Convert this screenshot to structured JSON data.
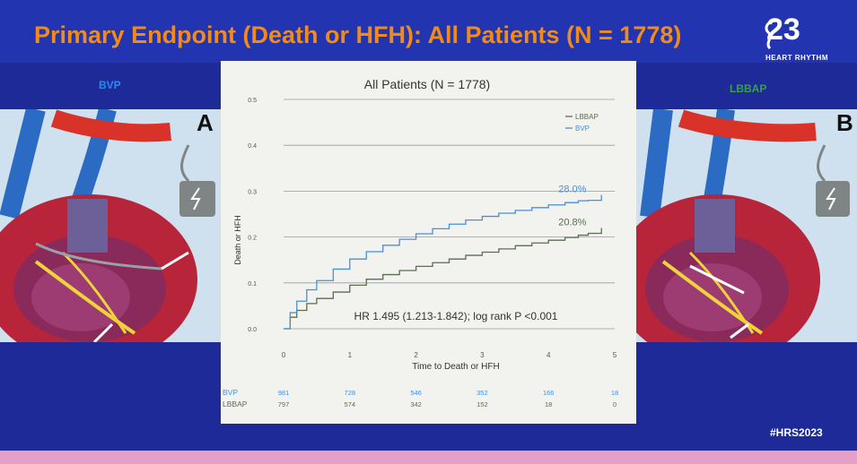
{
  "slide": {
    "title": "Primary Endpoint (Death or HFH): All Patients (N = 1778)",
    "logo_number": "23",
    "logo_subtitle": "HEART RHYTHM",
    "hashtag": "#HRS2023",
    "left_label": "BVP",
    "right_label": "LBBAP",
    "left_panel_letter": "A",
    "right_panel_letter": "B"
  },
  "colors": {
    "background": "#1d2a97",
    "title": "#f08a1a",
    "bvp": "#4a8fd8",
    "lbbap": "#5a6e50",
    "chart_bg": "#f2f2ef"
  },
  "chart_data": {
    "type": "line",
    "title": "All Patients (N = 1778)",
    "xlabel": "Time to Death or HFH",
    "ylabel": "Death or HFH",
    "xlim": [
      0,
      5
    ],
    "ylim": [
      0,
      0.5
    ],
    "xticks": [
      "0",
      "1",
      "2",
      "3",
      "4",
      "5"
    ],
    "yticks": [
      "0.0",
      "0.1",
      "0.2",
      "0.3",
      "0.4",
      "0.5"
    ],
    "grid": true,
    "legend_position": "top-right",
    "series": [
      {
        "name": "LBBAP",
        "color": "#5a6e50",
        "end_label": "20.8%",
        "x": [
          0,
          0.1,
          0.2,
          0.35,
          0.5,
          0.75,
          1,
          1.25,
          1.5,
          1.75,
          2,
          2.25,
          2.5,
          2.75,
          3,
          3.25,
          3.5,
          3.75,
          4,
          4.25,
          4.45,
          4.6
        ],
        "y": [
          0,
          0.025,
          0.04,
          0.055,
          0.066,
          0.08,
          0.095,
          0.108,
          0.118,
          0.127,
          0.136,
          0.144,
          0.152,
          0.16,
          0.167,
          0.174,
          0.181,
          0.187,
          0.193,
          0.199,
          0.204,
          0.208
        ]
      },
      {
        "name": "BVP",
        "color": "#4a8fd8",
        "end_label": "28.0%",
        "x": [
          0,
          0.1,
          0.2,
          0.35,
          0.5,
          0.75,
          1,
          1.25,
          1.5,
          1.75,
          2,
          2.25,
          2.5,
          2.75,
          3,
          3.25,
          3.5,
          3.75,
          4,
          4.25,
          4.45,
          4.6
        ],
        "y": [
          0,
          0.035,
          0.06,
          0.085,
          0.105,
          0.13,
          0.152,
          0.168,
          0.182,
          0.195,
          0.207,
          0.218,
          0.228,
          0.237,
          0.245,
          0.252,
          0.258,
          0.264,
          0.27,
          0.275,
          0.279,
          0.28
        ]
      }
    ],
    "annotation": "HR 1.495 (1.213-1.842); log rank P <0.001",
    "at_risk": [
      {
        "label": "BVP",
        "values": [
          "981",
          "728",
          "546",
          "352",
          "166",
          "18"
        ]
      },
      {
        "label": "LBBAP",
        "values": [
          "797",
          "574",
          "342",
          "152",
          "18",
          "0"
        ]
      }
    ]
  }
}
